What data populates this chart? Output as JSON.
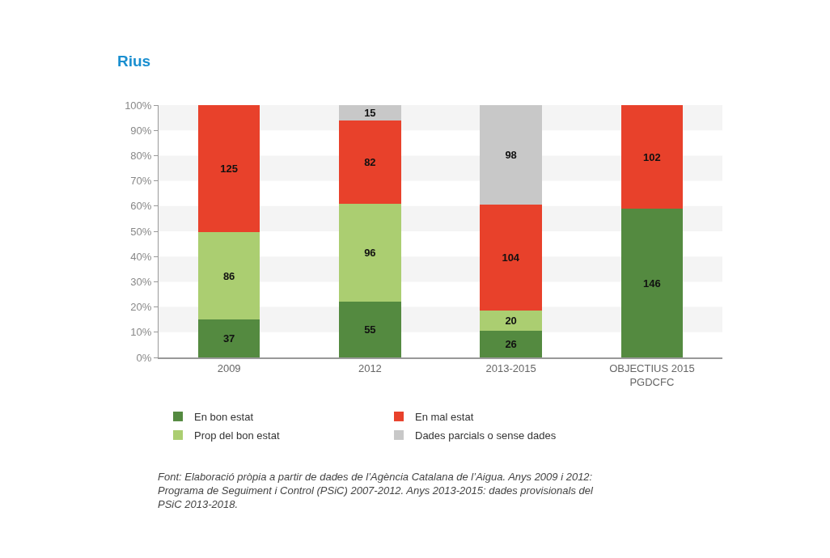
{
  "chart_data": {
    "type": "bar",
    "title": "Rius",
    "categories": [
      "2009",
      "2012",
      "2013-2015",
      "OBJECTIUS 2015\nPGDCFC"
    ],
    "stacked": true,
    "data_labels": true,
    "series": [
      {
        "name": "En bon estat",
        "color": "#548a40",
        "axis": "y2",
        "values": [
          37,
          55,
          26,
          146
        ]
      },
      {
        "name": "Prop del bon estat",
        "color": "#abce71",
        "axis": "y2",
        "values": [
          86,
          96,
          20,
          null
        ]
      },
      {
        "name": "En mal estat",
        "color": "#e8412b",
        "axis": "y2",
        "values": [
          125,
          82,
          104,
          102
        ]
      },
      {
        "name": "Dades parcials o sense dades",
        "color": "#c8c8c8",
        "axis": "y2",
        "values": [
          null,
          15,
          98,
          null
        ]
      }
    ],
    "ylim": [
      0,
      100
    ],
    "yticks": [
      {
        "value": 0,
        "label": "0%"
      },
      {
        "value": 10,
        "label": "10%"
      },
      {
        "value": 20,
        "label": "20%"
      },
      {
        "value": 30,
        "label": "30%"
      },
      {
        "value": 40,
        "label": "40%"
      },
      {
        "value": 50,
        "label": "50%"
      },
      {
        "value": 60,
        "label": "60%"
      },
      {
        "value": 70,
        "label": "70%"
      },
      {
        "value": 80,
        "label": "80%"
      },
      {
        "value": 90,
        "label": "90%"
      },
      {
        "value": 100,
        "label": "100%"
      }
    ],
    "y2lim": [
      0,
      248
    ],
    "bands": [
      {
        "axis": "y",
        "from": 10,
        "to": 20,
        "color": "#f4f4f4"
      },
      {
        "axis": "y",
        "from": 30,
        "to": 40,
        "color": "#f4f4f4"
      },
      {
        "axis": "y",
        "from": 50,
        "to": 60,
        "color": "#f4f4f4"
      },
      {
        "axis": "y",
        "from": 70,
        "to": 80,
        "color": "#f4f4f4"
      },
      {
        "axis": "y",
        "from": 90,
        "to": 100,
        "color": "#f4f4f4"
      }
    ],
    "legend": "bottom",
    "annotations": [
      "Font: Elaboració pròpia a partir de dades de l’Agència Catalana de l’Aigua. Anys 2009 i 2012:\nPrograma de Seguiment i Control (PSiC) 2007-2012. Anys 2013-2015: dades provisionals del\nPSiC 2013-2018."
    ]
  }
}
